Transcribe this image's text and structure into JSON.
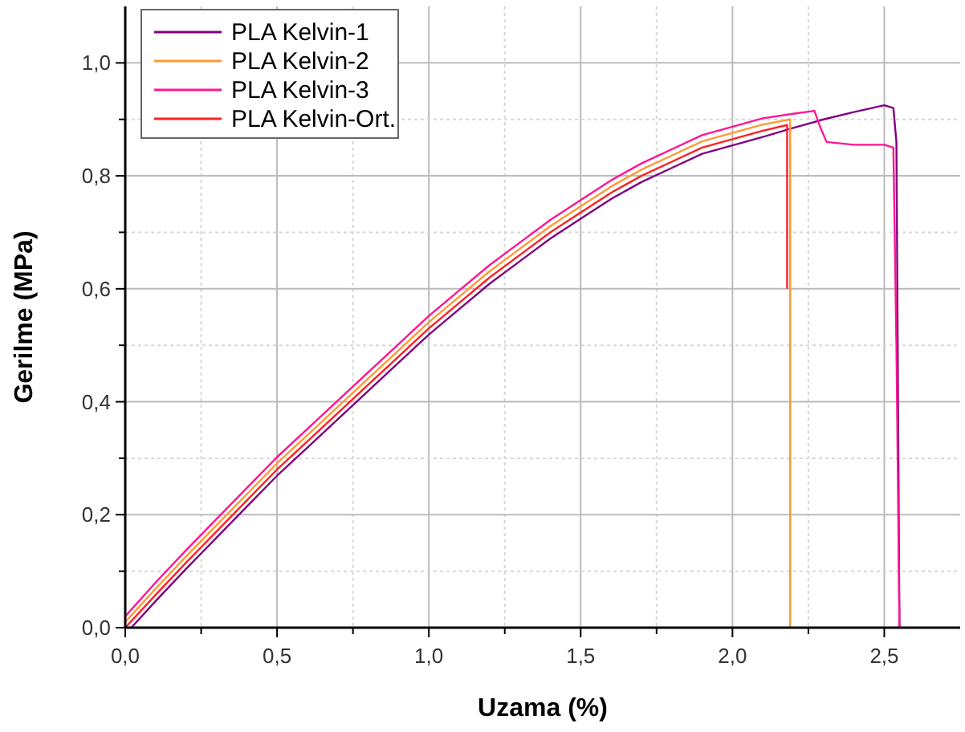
{
  "chart_data": {
    "type": "line",
    "xlabel": "Uzama (%)",
    "ylabel": "Gerilme (MPa)",
    "xlim": [
      0,
      2.75
    ],
    "ylim": [
      0,
      1.1
    ],
    "xticks": [
      {
        "value": 0,
        "label": "0,0"
      },
      {
        "value": 0.25,
        "label": null
      },
      {
        "value": 0.5,
        "label": "0,5"
      },
      {
        "value": 0.75,
        "label": null
      },
      {
        "value": 1,
        "label": "1,0"
      },
      {
        "value": 1.25,
        "label": null
      },
      {
        "value": 1.5,
        "label": "1,5"
      },
      {
        "value": 1.75,
        "label": null
      },
      {
        "value": 2,
        "label": "2,0"
      },
      {
        "value": 2.25,
        "label": null
      },
      {
        "value": 2.5,
        "label": "2,5"
      }
    ],
    "yticks": [
      {
        "value": 0,
        "label": "0,0"
      },
      {
        "value": 0.1,
        "label": null
      },
      {
        "value": 0.2,
        "label": "0,2"
      },
      {
        "value": 0.3,
        "label": null
      },
      {
        "value": 0.4,
        "label": "0,4"
      },
      {
        "value": 0.5,
        "label": null
      },
      {
        "value": 0.6,
        "label": "0,6"
      },
      {
        "value": 0.7,
        "label": null
      },
      {
        "value": 0.8,
        "label": "0,8"
      },
      {
        "value": 0.9,
        "label": null
      },
      {
        "value": 1,
        "label": "1,0"
      }
    ],
    "grid": true,
    "legend": "top left",
    "marker": "none",
    "line_style": "solid",
    "series": [
      {
        "name": "PLA Kelvin-1",
        "color": "#800080",
        "x": [
          0.02,
          0.1,
          0.2,
          0.3,
          0.4,
          0.5,
          0.6,
          0.7,
          0.8,
          0.9,
          1.0,
          1.1,
          1.2,
          1.3,
          1.4,
          1.5,
          1.6,
          1.7,
          1.8,
          1.9,
          2.0,
          2.1,
          2.2,
          2.3,
          2.4,
          2.5,
          2.53,
          2.54,
          2.55
        ],
        "values": [
          0,
          0.047,
          0.104,
          0.159,
          0.214,
          0.269,
          0.319,
          0.369,
          0.419,
          0.469,
          0.519,
          0.564,
          0.609,
          0.649,
          0.689,
          0.724,
          0.759,
          0.789,
          0.814,
          0.839,
          0.854,
          0.869,
          0.885,
          0.9,
          0.913,
          0.925,
          0.92,
          0.86,
          0
        ]
      },
      {
        "name": "PLA Kelvin-2",
        "color": "#ff9933",
        "x": [
          0,
          0.1,
          0.2,
          0.3,
          0.4,
          0.5,
          0.6,
          0.7,
          0.8,
          0.9,
          1.0,
          1.1,
          1.2,
          1.3,
          1.4,
          1.5,
          1.6,
          1.7,
          1.8,
          1.9,
          2.0,
          2.1,
          2.19,
          2.19
        ],
        "values": [
          0.01,
          0.069,
          0.126,
          0.181,
          0.236,
          0.291,
          0.341,
          0.391,
          0.441,
          0.491,
          0.541,
          0.586,
          0.631,
          0.671,
          0.711,
          0.746,
          0.781,
          0.811,
          0.836,
          0.861,
          0.876,
          0.891,
          0.9,
          0
        ]
      },
      {
        "name": "PLA Kelvin-3",
        "color": "#ff1493",
        "x": [
          0,
          0.1,
          0.2,
          0.3,
          0.4,
          0.5,
          0.6,
          0.7,
          0.8,
          0.9,
          1.0,
          1.1,
          1.2,
          1.3,
          1.4,
          1.5,
          1.6,
          1.7,
          1.8,
          1.9,
          2.0,
          2.1,
          2.2,
          2.27,
          2.29,
          2.31,
          2.4,
          2.5,
          2.53,
          2.54,
          2.55
        ],
        "values": [
          0.02,
          0.08,
          0.137,
          0.192,
          0.247,
          0.302,
          0.352,
          0.402,
          0.452,
          0.502,
          0.552,
          0.597,
          0.642,
          0.682,
          0.722,
          0.757,
          0.792,
          0.822,
          0.847,
          0.872,
          0.887,
          0.902,
          0.91,
          0.915,
          0.885,
          0.86,
          0.855,
          0.855,
          0.85,
          0.5,
          0
        ]
      },
      {
        "name": "PLA Kelvin-Ort.",
        "color": "#ff2020",
        "x": [
          0,
          0.1,
          0.2,
          0.3,
          0.4,
          0.5,
          0.6,
          0.7,
          0.8,
          0.9,
          1.0,
          1.1,
          1.2,
          1.3,
          1.4,
          1.5,
          1.6,
          1.7,
          1.8,
          1.9,
          2.0,
          2.1,
          2.18,
          2.18
        ],
        "values": [
          0,
          0.058,
          0.115,
          0.17,
          0.225,
          0.28,
          0.33,
          0.38,
          0.43,
          0.48,
          0.53,
          0.575,
          0.62,
          0.66,
          0.7,
          0.735,
          0.77,
          0.8,
          0.825,
          0.85,
          0.865,
          0.88,
          0.89,
          0.6
        ]
      }
    ]
  }
}
